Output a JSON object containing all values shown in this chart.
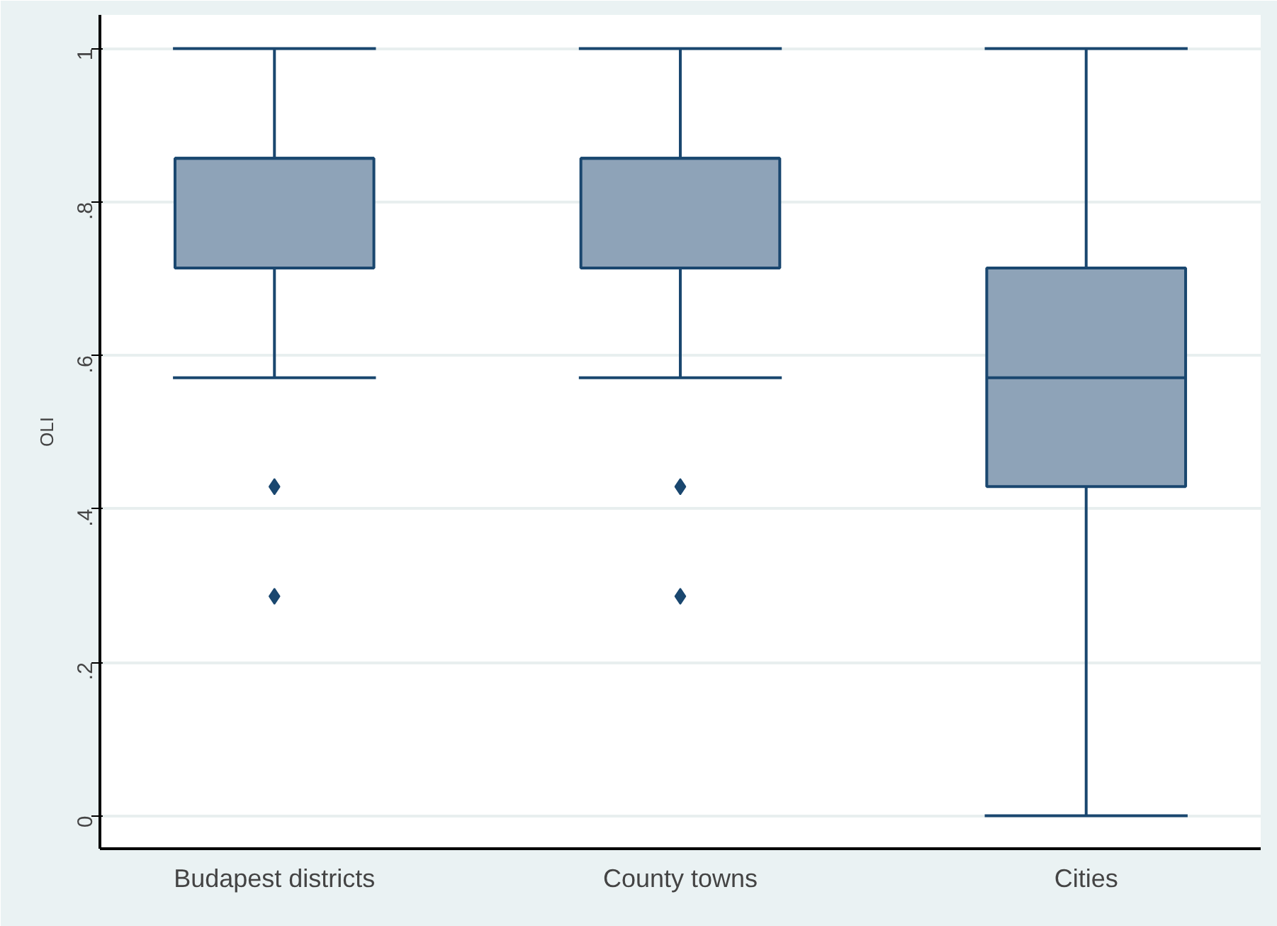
{
  "chart_data": {
    "type": "box",
    "ylabel": "OLI",
    "categories": [
      "Budapest districts",
      "County towns",
      "Cities"
    ],
    "boxes": [
      {
        "low": 0.571,
        "q1": 0.714,
        "median": 0.857,
        "q3": 0.857,
        "high": 1.0,
        "outliers": [
          0.429,
          0.286
        ]
      },
      {
        "low": 0.571,
        "q1": 0.714,
        "median": 0.857,
        "q3": 0.857,
        "high": 1.0,
        "outliers": [
          0.429,
          0.286
        ]
      },
      {
        "low": 0.0,
        "q1": 0.429,
        "median": 0.571,
        "q3": 0.714,
        "high": 1.0
      }
    ],
    "color": "#8ea3b8",
    "ylim": [
      -0.043,
      1.044
    ],
    "yticks": [
      {
        "value": 0,
        "label": "0"
      },
      {
        "value": 0.2,
        "label": ".2"
      },
      {
        "value": 0.4,
        "label": ".4"
      },
      {
        "value": 0.6,
        "label": ".6"
      },
      {
        "value": 0.8,
        "label": ".8"
      },
      {
        "value": 1,
        "label": "1"
      }
    ],
    "grid": "y",
    "marker": "diamond"
  }
}
